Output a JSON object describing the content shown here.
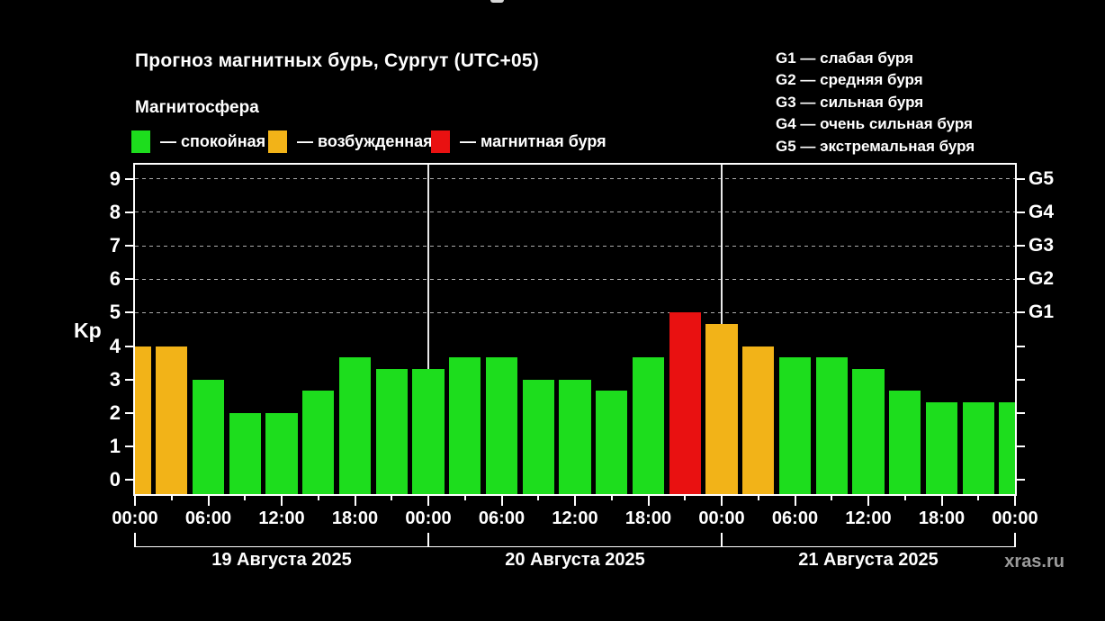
{
  "title": "Прогноз магнитных бурь, Сургут (UTC+05)",
  "subtitle": "Магнитосфера",
  "legend": [
    {
      "status": "quiet",
      "label": "— спокойная",
      "color": "#1ddd1d"
    },
    {
      "status": "excited",
      "label": "— возбужденная",
      "color": "#f2b318"
    },
    {
      "status": "storm",
      "label": "— магнитная буря",
      "color": "#e91111"
    }
  ],
  "storm_scale": [
    "G1 — слабая буря",
    "G2 — средняя буря",
    "G3 — сильная буря",
    "G4 — очень сильная буря",
    "G5 — экстремальная буря"
  ],
  "watermark": "xras.ru",
  "colors": {
    "background": "#000000",
    "axis": "#ffffff",
    "grid": "#ababab",
    "watermark_text": "#9a9a9a"
  },
  "chart_data": {
    "type": "bar",
    "title": "Прогноз магнитных бурь, Сургут (UTC+05)",
    "ylabel": "Kp",
    "ylim": [
      0,
      9
    ],
    "yticks": [
      0,
      1,
      2,
      3,
      4,
      5,
      6,
      7,
      8,
      9
    ],
    "grid_kp_levels": [
      5,
      6,
      7,
      8,
      9
    ],
    "g_scale_ticks": [
      {
        "label": "G1",
        "kp": 5
      },
      {
        "label": "G2",
        "kp": 6
      },
      {
        "label": "G3",
        "kp": 7
      },
      {
        "label": "G4",
        "kp": 8
      },
      {
        "label": "G5",
        "kp": 9
      }
    ],
    "hours_span": 72,
    "bar_interval_hours": 3,
    "x_tick_labels": [
      {
        "hour": 0,
        "label": "00:00"
      },
      {
        "hour": 6,
        "label": "06:00"
      },
      {
        "hour": 12,
        "label": "12:00"
      },
      {
        "hour": 18,
        "label": "18:00"
      },
      {
        "hour": 24,
        "label": "00:00"
      },
      {
        "hour": 30,
        "label": "06:00"
      },
      {
        "hour": 36,
        "label": "12:00"
      },
      {
        "hour": 42,
        "label": "18:00"
      },
      {
        "hour": 48,
        "label": "00:00"
      },
      {
        "hour": 54,
        "label": "06:00"
      },
      {
        "hour": 60,
        "label": "12:00"
      },
      {
        "hour": 66,
        "label": "18:00"
      },
      {
        "hour": 72,
        "label": "00:00"
      }
    ],
    "days": [
      {
        "label": "19 Августа 2025",
        "start_hour": 0
      },
      {
        "label": "20 Августа 2025",
        "start_hour": 24
      },
      {
        "label": "21 Августа 2025",
        "start_hour": 48
      }
    ],
    "day_separator_hours": [
      24,
      48
    ],
    "bars": [
      {
        "hour": 0,
        "kp": 4,
        "status": "excited"
      },
      {
        "hour": 3,
        "kp": 4,
        "status": "excited"
      },
      {
        "hour": 6,
        "kp": 3,
        "status": "quiet"
      },
      {
        "hour": 9,
        "kp": 2,
        "status": "quiet"
      },
      {
        "hour": 12,
        "kp": 2,
        "status": "quiet"
      },
      {
        "hour": 15,
        "kp": 2.67,
        "status": "quiet"
      },
      {
        "hour": 18,
        "kp": 3.67,
        "status": "quiet"
      },
      {
        "hour": 21,
        "kp": 3.33,
        "status": "quiet"
      },
      {
        "hour": 24,
        "kp": 3.33,
        "status": "quiet"
      },
      {
        "hour": 27,
        "kp": 3.67,
        "status": "quiet"
      },
      {
        "hour": 30,
        "kp": 3.67,
        "status": "quiet"
      },
      {
        "hour": 33,
        "kp": 3,
        "status": "quiet"
      },
      {
        "hour": 36,
        "kp": 3,
        "status": "quiet"
      },
      {
        "hour": 39,
        "kp": 2.67,
        "status": "quiet"
      },
      {
        "hour": 42,
        "kp": 3.67,
        "status": "quiet"
      },
      {
        "hour": 45,
        "kp": 5,
        "status": "storm"
      },
      {
        "hour": 48,
        "kp": 4.67,
        "status": "excited"
      },
      {
        "hour": 51,
        "kp": 4,
        "status": "excited"
      },
      {
        "hour": 54,
        "kp": 3.67,
        "status": "quiet"
      },
      {
        "hour": 57,
        "kp": 3.67,
        "status": "quiet"
      },
      {
        "hour": 60,
        "kp": 3.33,
        "status": "quiet"
      },
      {
        "hour": 63,
        "kp": 2.67,
        "status": "quiet"
      },
      {
        "hour": 66,
        "kp": 2.33,
        "status": "quiet"
      },
      {
        "hour": 69,
        "kp": 2.33,
        "status": "quiet"
      },
      {
        "hour": 72,
        "kp": 2.33,
        "status": "quiet"
      }
    ]
  }
}
